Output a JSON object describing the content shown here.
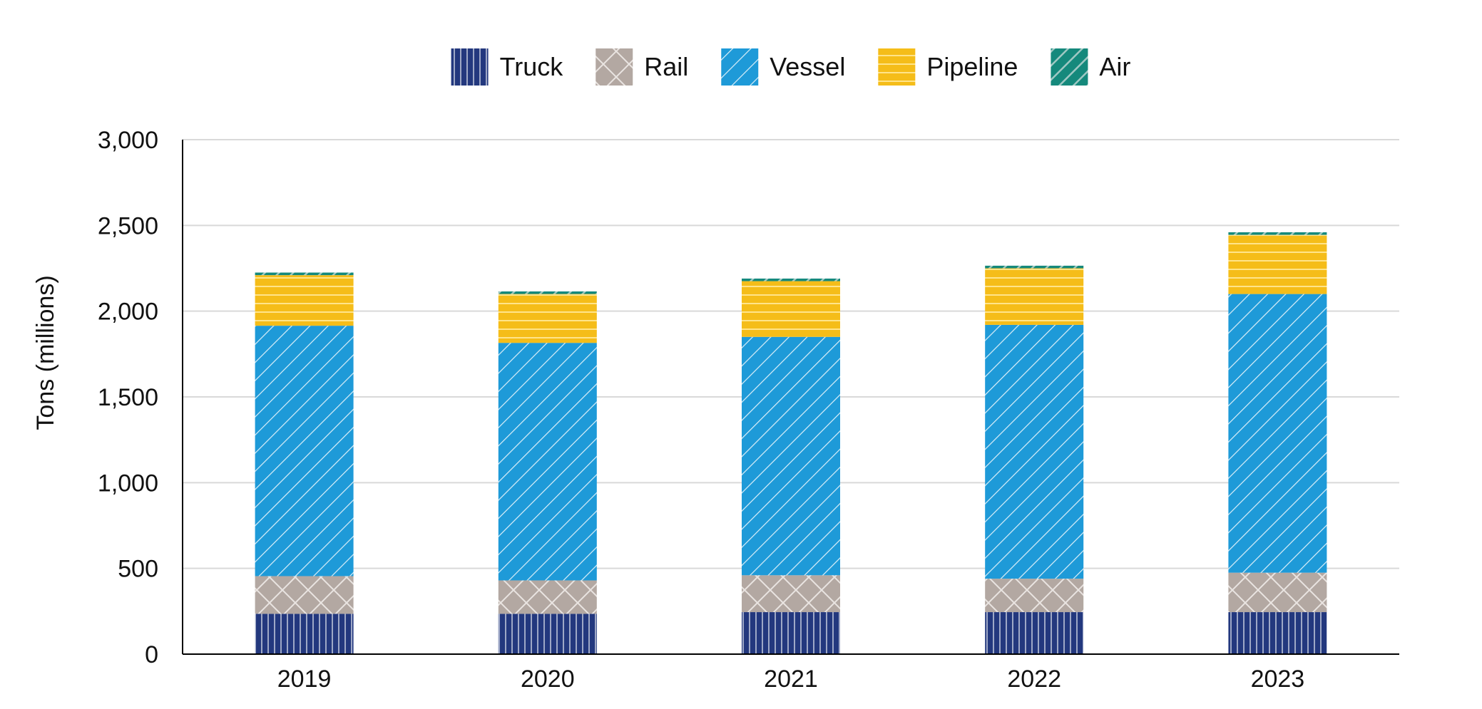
{
  "chart_data": {
    "type": "bar",
    "stacked": true,
    "categories": [
      "2019",
      "2020",
      "2021",
      "2022",
      "2023"
    ],
    "series": [
      {
        "name": "Truck",
        "values": [
          235,
          235,
          245,
          245,
          245
        ],
        "color": "#23387e",
        "pattern": "vertical-lines"
      },
      {
        "name": "Rail",
        "values": [
          220,
          195,
          215,
          195,
          230
        ],
        "color": "#b3a8a2",
        "pattern": "crosshatch"
      },
      {
        "name": "Vessel",
        "values": [
          1460,
          1385,
          1390,
          1480,
          1625
        ],
        "color": "#1e9ad8",
        "pattern": "diagonal-lines"
      },
      {
        "name": "Pipeline",
        "values": [
          295,
          285,
          325,
          330,
          345
        ],
        "color": "#f5bd19",
        "pattern": "horizontal-lines"
      },
      {
        "name": "Air",
        "values": [
          15,
          15,
          15,
          15,
          15
        ],
        "color": "#15897c",
        "pattern": "wide-diagonal-lines"
      }
    ],
    "title": "",
    "xlabel": "",
    "ylabel": "Tons (millions)",
    "ylim": [
      0,
      3000
    ],
    "yticks": [
      0,
      500,
      1000,
      1500,
      2000,
      2500,
      3000
    ],
    "ytick_labels": [
      "0",
      "500",
      "1,000",
      "1,500",
      "2,000",
      "2,500",
      "3,000"
    ],
    "grid": true,
    "legend_position": "top"
  }
}
